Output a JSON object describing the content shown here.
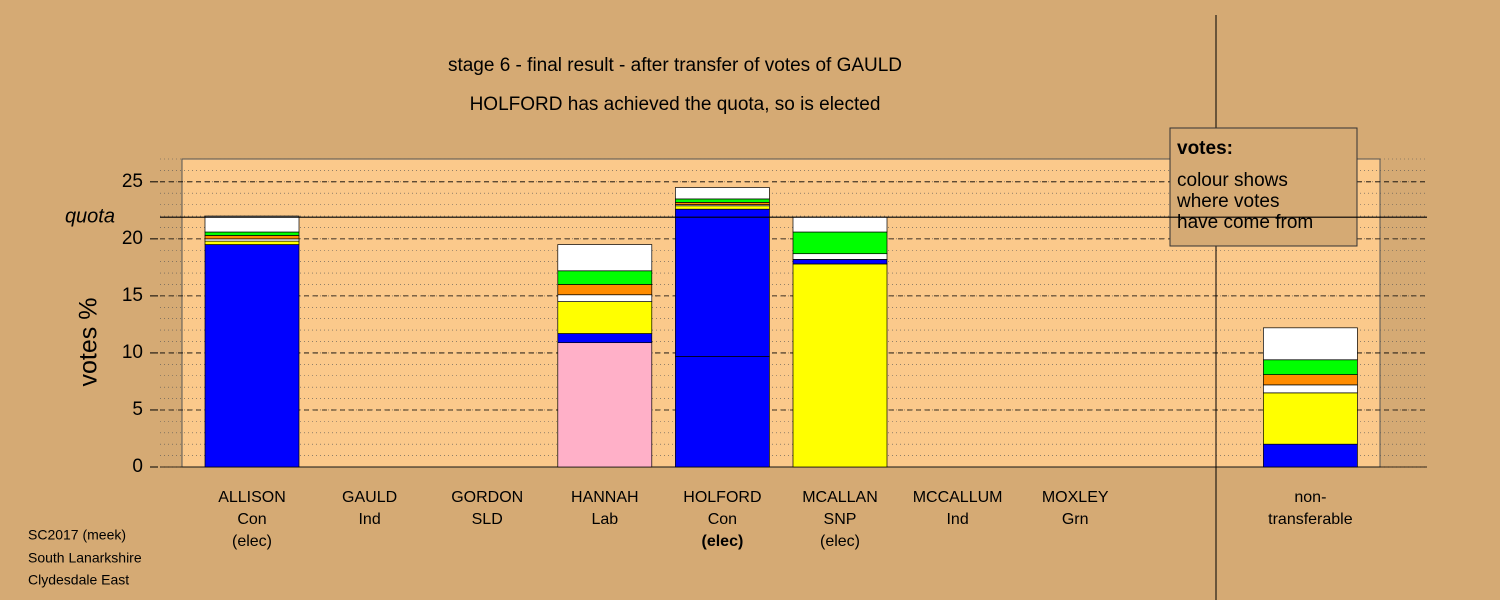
{
  "chart_data": {
    "type": "stacked_bar",
    "title": "stage 6 - final result - after transfer of votes of GAULD",
    "subtitle": "HOLFORD has achieved the quota, so is elected",
    "y_label": "votes %",
    "categories": [
      [
        "ALLISON",
        "Con",
        "(elec)"
      ],
      [
        "GAULD",
        "Ind"
      ],
      [
        "GORDON",
        "SLD"
      ],
      [
        "HANNAH",
        "Lab"
      ],
      [
        "HOLFORD",
        "Con",
        "(elec)"
      ],
      [
        "MCALLAN",
        "SNP",
        "(elec)"
      ],
      [
        "MCCALLUM",
        "Ind"
      ],
      [
        "MOXLEY",
        "Grn"
      ],
      null,
      [
        "non-",
        "transferable"
      ]
    ],
    "bold_category": 4,
    "stacks": [
      [
        {
          "color": "#0000ff",
          "value": 19.5
        },
        {
          "color": "#ffff00",
          "value": 0.3
        },
        {
          "color": "#ffffff",
          "value": 0.2
        },
        {
          "color": "#ff8c00",
          "value": 0.3
        },
        {
          "color": "#00ff00",
          "value": 0.3
        },
        {
          "color": "#ffffff",
          "value": 1.4
        }
      ],
      [],
      [],
      [
        {
          "color": "#ffb0c8",
          "value": 10.9
        },
        {
          "color": "#0000ff",
          "value": 0.8
        },
        {
          "color": "#ffff00",
          "value": 2.8
        },
        {
          "color": "#ffffff",
          "value": 0.6
        },
        {
          "color": "#ff8c00",
          "value": 0.9
        },
        {
          "color": "#00ff00",
          "value": 1.2
        },
        {
          "color": "#ffffff",
          "value": 2.3
        }
      ],
      [
        {
          "color": "#0000ff",
          "value": 9.7
        },
        {
          "color": "#0000ff",
          "value": 12.9
        },
        {
          "color": "#ffff00",
          "value": 0.3
        },
        {
          "color": "#ffffff",
          "value": 0.1
        },
        {
          "color": "#ff8c00",
          "value": 0.2
        },
        {
          "color": "#00ff00",
          "value": 0.3
        },
        {
          "color": "#ffffff",
          "value": 1.0
        }
      ],
      [
        {
          "color": "#ffff00",
          "value": 17.8
        },
        {
          "color": "#0000ff",
          "value": 0.4
        },
        {
          "color": "#ffffff",
          "value": 0.5
        },
        {
          "color": "#00ff00",
          "value": 1.9
        },
        {
          "color": "#ffffff",
          "value": 1.3
        }
      ],
      [],
      [],
      [],
      [
        {
          "color": "#0000ff",
          "value": 2.0
        },
        {
          "color": "#ffff00",
          "value": 4.5
        },
        {
          "color": "#ffffff",
          "value": 0.7
        },
        {
          "color": "#ff8c00",
          "value": 0.9
        },
        {
          "color": "#00ff00",
          "value": 1.3
        },
        {
          "color": "#ffffff",
          "value": 2.8
        }
      ]
    ],
    "quota": {
      "label": "quota",
      "value": 21.9
    },
    "ylim": [
      0,
      27
    ],
    "yticks": [
      0,
      5,
      10,
      15,
      20,
      25
    ],
    "grid": true,
    "minor_grid": true,
    "note": {
      "title": "votes:",
      "lines": [
        "colour shows",
        "where votes",
        "have come from"
      ]
    },
    "footer": [
      "SC2017 (meek)",
      "South Lanarkshire",
      "Clydesdale East"
    ]
  }
}
